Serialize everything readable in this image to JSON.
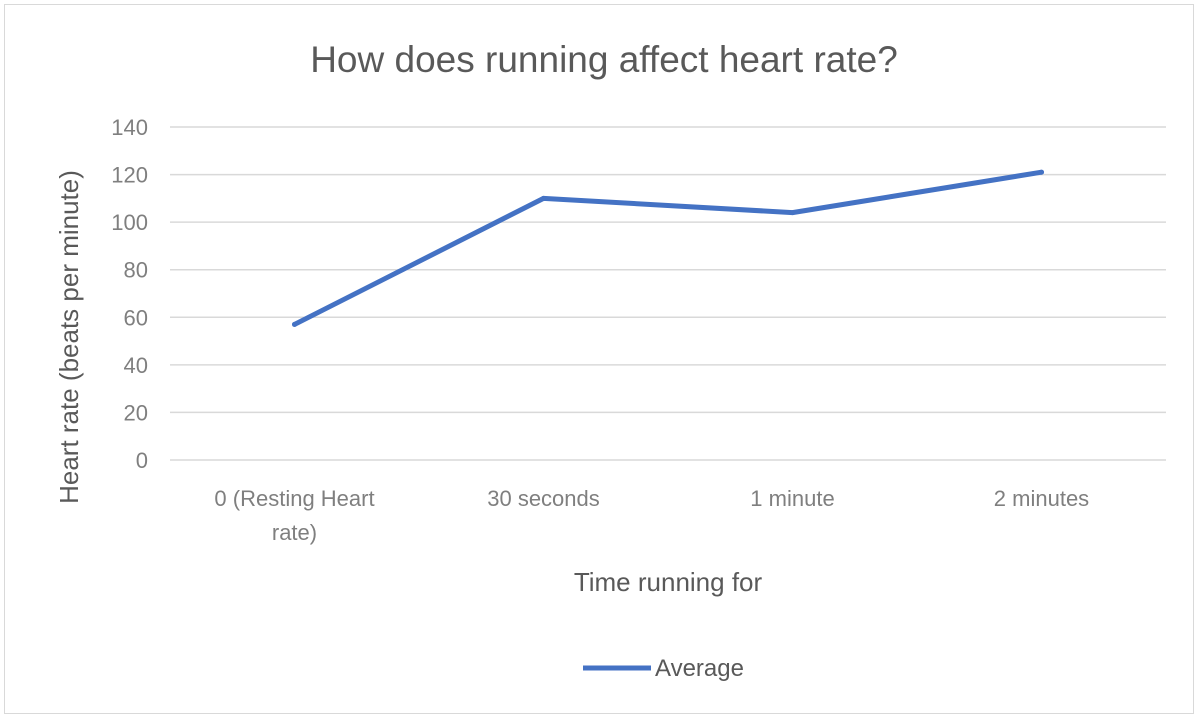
{
  "chart_data": {
    "type": "line",
    "title": "How does running affect heart rate?",
    "xlabel": "Time running for",
    "ylabel": "Heart rate (beats per minute)",
    "categories": [
      [
        "0 (Resting Heart",
        "rate)"
      ],
      [
        "30 seconds"
      ],
      [
        "1 minute"
      ],
      [
        "2 minutes"
      ]
    ],
    "series": [
      {
        "name": "Average",
        "values": [
          57,
          110,
          104,
          121
        ],
        "color": "#4472C4"
      }
    ],
    "ylim": [
      0,
      140
    ],
    "yticks": [
      0,
      20,
      40,
      60,
      80,
      100,
      120,
      140
    ],
    "grid": true,
    "legend": "bottom"
  }
}
